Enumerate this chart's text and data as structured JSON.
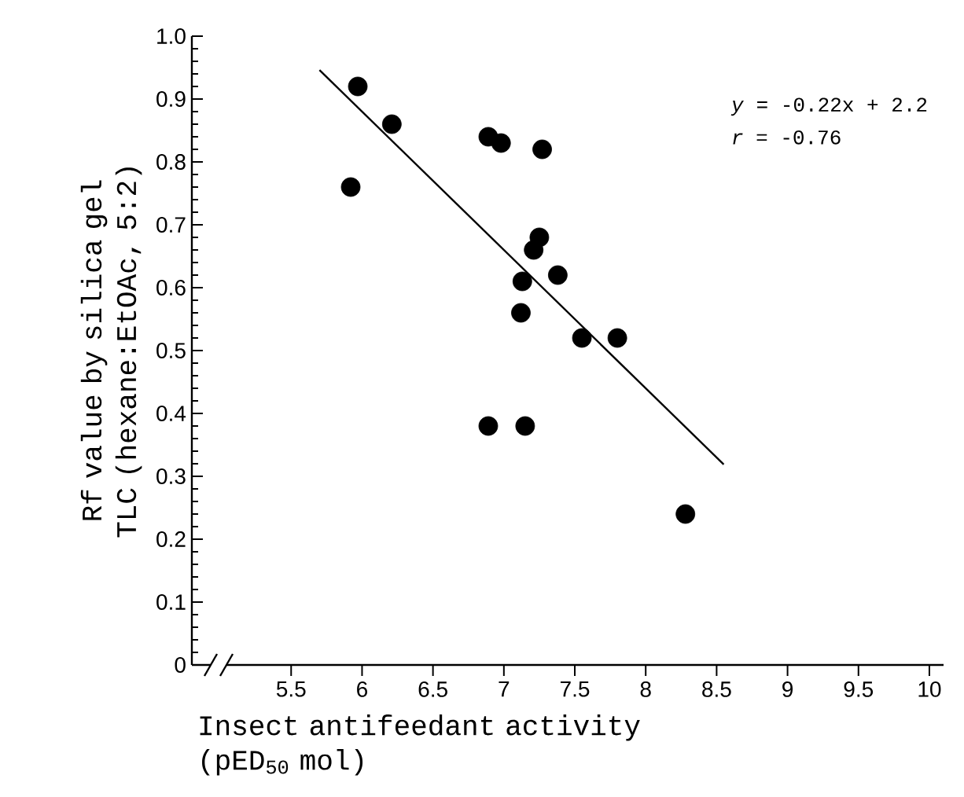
{
  "chart_data": {
    "type": "scatter",
    "xlabel": "Insect antifeedant activity (pED$_{50}$ mol)",
    "ylabel": "Rf value by silica gel TLC (hexane:EtOAc, 5:2)",
    "xlim": [
      4.8,
      10.1
    ],
    "ylim": [
      0,
      1
    ],
    "xticks": [
      5.5,
      6,
      6.5,
      7,
      7.5,
      8,
      8.5,
      9,
      9.5,
      10
    ],
    "yticks": [
      0,
      0.1,
      0.2,
      0.3,
      0.4,
      0.5,
      0.6,
      0.7,
      0.8,
      0.9,
      {
        "value": 1,
        "label": "1.0"
      }
    ],
    "annotations": [
      "*y* = -0.22x + 2.2",
      "*r* = -0.76"
    ],
    "series": [
      {
        "color": "#000000",
        "marker": "circle",
        "x": [
          5.97,
          6.21,
          5.92,
          6.89,
          6.98,
          7.27,
          7.25,
          7.21,
          7.38,
          7.13,
          7.12,
          7.55,
          7.8,
          6.89,
          7.15,
          8.28
        ],
        "values": [
          0.92,
          0.86,
          0.76,
          0.84,
          0.83,
          0.82,
          0.68,
          0.66,
          0.62,
          0.61,
          0.56,
          0.52,
          0.52,
          0.38,
          0.38,
          0.24
        ]
      },
      {
        "type": "line",
        "color": "#000000",
        "marker": "none",
        "line_style": "solid",
        "x": [
          5.7,
          8.55
        ],
        "values": [
          0.946,
          0.319
        ]
      }
    ]
  }
}
